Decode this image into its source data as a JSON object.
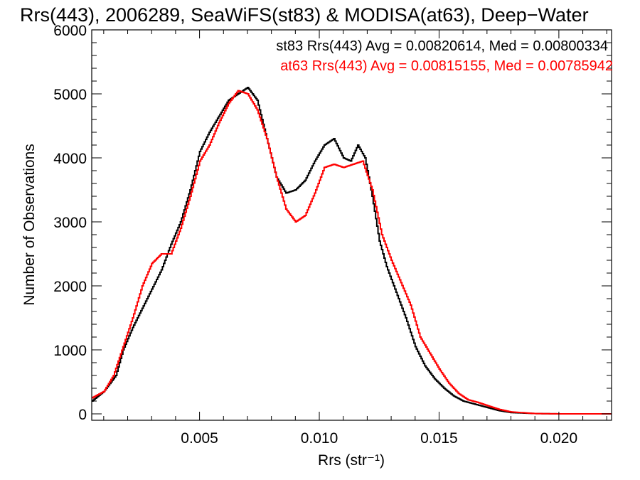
{
  "chart_data": {
    "type": "line",
    "step": true,
    "title": "Rrs(443), 2006289, SeaWiFS(st83) & MODISA(at63), Deep−Water",
    "xlabel": "Rrs (str⁻¹)",
    "ylabel": "Number of Observations",
    "xlim": [
      0.0005,
      0.0222
    ],
    "ylim": [
      -100,
      6000
    ],
    "xticks": [
      0.005,
      0.01,
      0.015,
      0.02
    ],
    "xtick_labels": [
      "0.005",
      "0.010",
      "0.015",
      "0.020"
    ],
    "yticks": [
      0,
      1000,
      2000,
      3000,
      4000,
      5000,
      6000
    ],
    "ytick_labels": [
      "0",
      "1000",
      "2000",
      "3000",
      "4000",
      "5000",
      "6000"
    ],
    "grid": false,
    "legend_position": "top-right",
    "legend": [
      "st83 Rrs(443) Avg = 0.00820614, Med = 0.00800334",
      "at63 Rrs(443) Avg = 0.00815155, Med = 0.00785942"
    ],
    "series": [
      {
        "color": "#000000",
        "points": [
          [
            0.0005,
            200
          ],
          [
            0.001,
            350
          ],
          [
            0.0015,
            600
          ],
          [
            0.0018,
            1000
          ],
          [
            0.0022,
            1350
          ],
          [
            0.0026,
            1650
          ],
          [
            0.003,
            1950
          ],
          [
            0.0034,
            2250
          ],
          [
            0.0038,
            2650
          ],
          [
            0.0042,
            3000
          ],
          [
            0.0046,
            3500
          ],
          [
            0.005,
            4100
          ],
          [
            0.0054,
            4400
          ],
          [
            0.0058,
            4650
          ],
          [
            0.0062,
            4900
          ],
          [
            0.0066,
            5000
          ],
          [
            0.007,
            5100
          ],
          [
            0.0074,
            4900
          ],
          [
            0.0078,
            4300
          ],
          [
            0.0082,
            3700
          ],
          [
            0.0086,
            3450
          ],
          [
            0.009,
            3500
          ],
          [
            0.0094,
            3650
          ],
          [
            0.0098,
            3950
          ],
          [
            0.0102,
            4200
          ],
          [
            0.0106,
            4300
          ],
          [
            0.011,
            4000
          ],
          [
            0.0113,
            3950
          ],
          [
            0.0116,
            4200
          ],
          [
            0.0119,
            4000
          ],
          [
            0.0122,
            3400
          ],
          [
            0.0125,
            2700
          ],
          [
            0.0128,
            2300
          ],
          [
            0.0132,
            1900
          ],
          [
            0.0136,
            1500
          ],
          [
            0.014,
            1050
          ],
          [
            0.0144,
            750
          ],
          [
            0.0148,
            550
          ],
          [
            0.0152,
            400
          ],
          [
            0.0156,
            280
          ],
          [
            0.016,
            200
          ],
          [
            0.0165,
            150
          ],
          [
            0.017,
            100
          ],
          [
            0.0175,
            50
          ],
          [
            0.018,
            20
          ],
          [
            0.019,
            5
          ],
          [
            0.02,
            0
          ],
          [
            0.0222,
            0
          ]
        ]
      },
      {
        "color": "#ff0000",
        "points": [
          [
            0.0005,
            250
          ],
          [
            0.001,
            350
          ],
          [
            0.0014,
            600
          ],
          [
            0.0018,
            1050
          ],
          [
            0.0022,
            1500
          ],
          [
            0.0026,
            2000
          ],
          [
            0.003,
            2350
          ],
          [
            0.0034,
            2500
          ],
          [
            0.0038,
            2500
          ],
          [
            0.0042,
            2900
          ],
          [
            0.0046,
            3400
          ],
          [
            0.005,
            3950
          ],
          [
            0.0054,
            4200
          ],
          [
            0.0058,
            4550
          ],
          [
            0.0062,
            4850
          ],
          [
            0.0066,
            5050
          ],
          [
            0.007,
            5000
          ],
          [
            0.0074,
            4750
          ],
          [
            0.0078,
            4300
          ],
          [
            0.0082,
            3700
          ],
          [
            0.0086,
            3200
          ],
          [
            0.009,
            3000
          ],
          [
            0.0094,
            3100
          ],
          [
            0.0098,
            3450
          ],
          [
            0.0102,
            3850
          ],
          [
            0.0106,
            3900
          ],
          [
            0.011,
            3850
          ],
          [
            0.0114,
            3900
          ],
          [
            0.0118,
            3950
          ],
          [
            0.0122,
            3500
          ],
          [
            0.0126,
            2800
          ],
          [
            0.013,
            2400
          ],
          [
            0.0134,
            2050
          ],
          [
            0.0138,
            1700
          ],
          [
            0.0142,
            1200
          ],
          [
            0.0146,
            950
          ],
          [
            0.015,
            700
          ],
          [
            0.0154,
            480
          ],
          [
            0.0158,
            320
          ],
          [
            0.0162,
            220
          ],
          [
            0.0166,
            180
          ],
          [
            0.017,
            130
          ],
          [
            0.0175,
            70
          ],
          [
            0.018,
            30
          ],
          [
            0.019,
            5
          ],
          [
            0.02,
            0
          ],
          [
            0.0222,
            0
          ]
        ]
      }
    ]
  }
}
